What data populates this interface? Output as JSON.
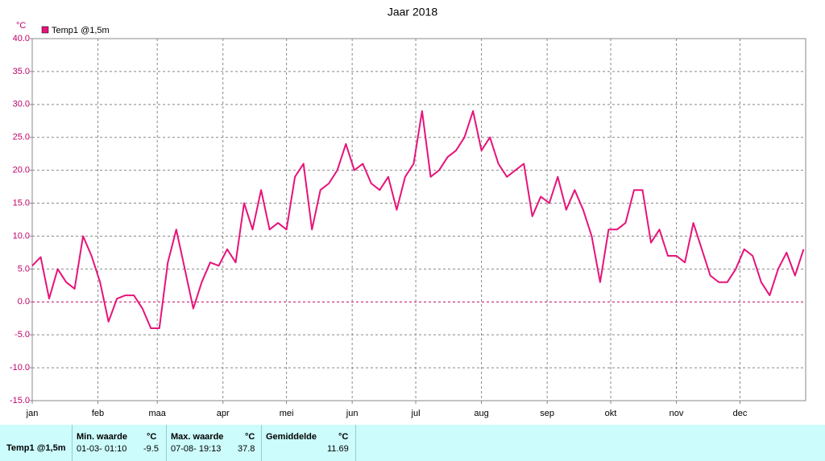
{
  "chart_data": {
    "type": "line",
    "title": "Jaar 2018",
    "y_unit": "°C",
    "xlim": [
      0,
      365
    ],
    "xticks": [
      {
        "value": 0,
        "label": "jan"
      },
      {
        "value": 31,
        "label": "feb"
      },
      {
        "value": 59,
        "label": "maa"
      },
      {
        "value": 90,
        "label": "apr"
      },
      {
        "value": 120,
        "label": "mei"
      },
      {
        "value": 151,
        "label": "jun"
      },
      {
        "value": 181,
        "label": "jul"
      },
      {
        "value": 212,
        "label": "aug"
      },
      {
        "value": 243,
        "label": "sep"
      },
      {
        "value": 273,
        "label": "okt"
      },
      {
        "value": 304,
        "label": "nov"
      },
      {
        "value": 334,
        "label": "dec"
      }
    ],
    "ylim": [
      -15,
      40
    ],
    "yticks": [
      {
        "value": -15,
        "label": "-15.0"
      },
      {
        "value": -10,
        "label": "-10.0"
      },
      {
        "value": -5,
        "label": "-5.0"
      },
      {
        "value": 0,
        "label": "0.0"
      },
      {
        "value": 5,
        "label": "5.0"
      },
      {
        "value": 10,
        "label": "10.0"
      },
      {
        "value": 15,
        "label": "15.0"
      },
      {
        "value": 20,
        "label": "20.0"
      },
      {
        "value": 25,
        "label": "25.0"
      },
      {
        "value": 30,
        "label": "30.0"
      },
      {
        "value": 35,
        "label": "35.0"
      },
      {
        "value": 40,
        "label": "40.0"
      }
    ],
    "grid": true,
    "zero_line": true,
    "x": [
      0,
      4,
      8,
      12,
      16,
      20,
      24,
      28,
      32,
      36,
      40,
      44,
      48,
      52,
      56,
      60,
      64,
      68,
      72,
      76,
      80,
      84,
      88,
      92,
      96,
      100,
      104,
      108,
      112,
      116,
      120,
      124,
      128,
      132,
      136,
      140,
      144,
      148,
      152,
      156,
      160,
      164,
      168,
      172,
      176,
      180,
      184,
      188,
      192,
      196,
      200,
      204,
      208,
      212,
      216,
      220,
      224,
      228,
      232,
      236,
      240,
      244,
      248,
      252,
      256,
      260,
      264,
      268,
      272,
      276,
      280,
      284,
      288,
      292,
      296,
      300,
      304,
      308,
      312,
      316,
      320,
      324,
      328,
      332,
      336,
      340,
      344,
      348,
      352,
      356,
      360,
      364
    ],
    "series": [
      {
        "name": "Temp1 @1,5m",
        "color": "#e6137a",
        "values": [
          5.5,
          6.8,
          0.5,
          5,
          3,
          2,
          10,
          7,
          3,
          -3,
          0.5,
          1,
          1,
          -1,
          -4,
          -4,
          6,
          11,
          5,
          -1,
          3,
          6,
          5.5,
          8,
          6,
          15,
          11,
          17,
          11,
          12,
          11,
          19,
          21,
          11,
          17,
          18,
          20,
          24,
          20,
          21,
          18,
          17,
          19,
          14,
          19,
          21,
          29,
          19,
          20,
          22,
          23,
          25,
          29,
          23,
          25,
          21,
          19,
          20,
          21,
          13,
          16,
          15,
          19,
          14,
          17,
          14,
          10,
          3,
          11,
          11,
          12,
          17,
          17,
          9,
          11,
          7,
          7,
          6,
          12,
          8,
          4,
          3,
          3,
          5,
          8,
          7,
          3,
          1,
          5,
          7.5,
          4,
          8
        ]
      }
    ]
  },
  "stats": {
    "row_label": "Temp1 @1,5m",
    "min": {
      "header": "Min. waarde",
      "unit": "°C",
      "date": "01-03- 01:10",
      "value": -9.5
    },
    "max": {
      "header": "Max. waarde",
      "unit": "°C",
      "date": "07-08- 19:13",
      "value": 37.8
    },
    "avg": {
      "header": "Gemiddelde",
      "unit": "°C",
      "value": 11.69
    }
  }
}
